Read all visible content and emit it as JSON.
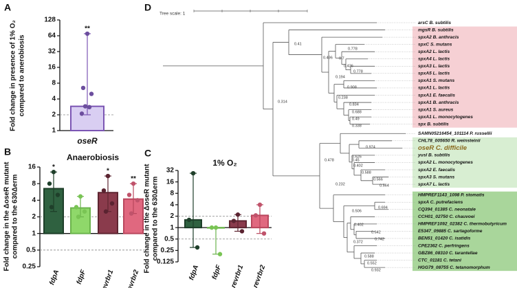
{
  "chart_data": [
    {
      "type": "bar",
      "panel": "A",
      "log_base": 2,
      "ylabel": [
        "Fold change in presence of  1% O₂",
        "compared to anerobiosis"
      ],
      "categories": [
        "oseR"
      ],
      "values": [
        2.9
      ],
      "colors": [
        "#d9cef2"
      ],
      "edge_colors": [
        "#7b55b3"
      ],
      "point_colors": [
        "#6c4e9e"
      ],
      "error_low": [
        2
      ],
      "error_high": [
        70
      ],
      "points": [
        [
          70,
          6.5,
          5,
          2.9,
          2.8,
          2.1
        ]
      ],
      "significance": [
        "**"
      ],
      "ylim": [
        1,
        128
      ],
      "yticks": [
        1,
        2,
        4,
        8,
        16,
        32,
        64,
        128
      ],
      "ref_lines": [
        2
      ]
    },
    {
      "type": "bar",
      "panel": "B",
      "title": "Anaerobiosis",
      "log_base": 2,
      "ylabel": [
        "Fold change in the ΔoseR mutant",
        "compared to the 630Δerm"
      ],
      "categories": [
        "fdpA",
        "fdpF",
        "revrbr1",
        "revrbr2"
      ],
      "values": [
        6.5,
        2.9,
        5.5,
        4.2
      ],
      "colors": [
        "#2f6140",
        "#8fd86a",
        "#8a3b4c",
        "#e0687f"
      ],
      "edge_colors": [
        "#1d3d28",
        "#6bb34c",
        "#5e2531",
        "#b9475d"
      ],
      "point_colors": [
        "#1f3f2a",
        "#79c454",
        "#5a2330",
        "#c0536b"
      ],
      "error_low": [
        2.5,
        2,
        2.5,
        2.3
      ],
      "error_high": [
        13,
        4.7,
        11,
        8
      ],
      "points": [
        [
          13,
          8,
          5,
          3
        ],
        [
          4.7,
          3,
          2.5,
          2
        ],
        [
          11,
          6,
          3.5,
          2.5
        ],
        [
          8,
          5,
          4,
          2.3
        ]
      ],
      "significance": [
        "*",
        null,
        "*",
        "**"
      ],
      "ylim": [
        0.25,
        16
      ],
      "yticks": [
        0.25,
        0.5,
        1,
        2,
        4,
        8,
        16
      ],
      "ref_lines": [
        2,
        0.5
      ]
    },
    {
      "type": "bar",
      "panel": "C",
      "title": "1% O₂",
      "log_base": 2,
      "ylabel": [
        "Fold change in the ΔoseR mutant",
        "compared to the 630Δerm"
      ],
      "categories": [
        "fdpA",
        "fdpF",
        "revrbr1",
        "revrbr2"
      ],
      "values": [
        1.6,
        1.0,
        1.5,
        2.1
      ],
      "colors": [
        "#2f6140",
        "#8fd86a",
        "#8a3b4c",
        "#e0687f"
      ],
      "edge_colors": [
        "#1d3d28",
        "#6bb34c",
        "#5e2531",
        "#b9475d"
      ],
      "point_colors": [
        "#1f3f2a",
        "#79c454",
        "#5a2330",
        "#c0536b"
      ],
      "error_low": [
        0.3,
        0.2,
        0.8,
        0.7
      ],
      "error_high": [
        27,
        1,
        2.2,
        4
      ],
      "points": [
        [
          27,
          1.6,
          0.3
        ],
        [
          1,
          1,
          0.2
        ],
        [
          2.2,
          1.5,
          0.8
        ],
        [
          4,
          2.1,
          0.7
        ]
      ],
      "significance": [
        null,
        null,
        null,
        null
      ],
      "ylim": [
        0.125,
        32
      ],
      "yticks": [
        0.125,
        0.25,
        0.5,
        1,
        2,
        4,
        8,
        16,
        32
      ],
      "ref_lines": [
        2,
        0.5
      ]
    }
  ],
  "tree": {
    "panel": "D",
    "scale_label": "Tree scale: 1",
    "leaves": [
      "arsC B. subtilis",
      "mgsR B. subtilis",
      "spxA2 B. anthracis",
      "spxC S. mutans",
      "spxA2 L. lactis",
      "spxA4 L. lactis",
      "spxA3 L. lactis",
      "spxA5 L. lactis",
      "spxA1 S. mutans",
      "spxA1 L. lactis",
      "spxA1 E. faecalis",
      "spxA1 B. anthracis",
      "spxA1 S. aureus",
      "spxA1 L. monocytogenes",
      "spx B. subtilis",
      "SAMN05216454_101114 P. russellii",
      "CHL78_005650 R. weinsteinii",
      "oseR C. difficile",
      "yusI B. subtilis",
      "spxA2 L. monocytogenes",
      "spxA2 E. faecalis",
      "spxA3 S. mutans",
      "spxA7 L. lactis",
      "HMPREF1143_1098 P. stomatis",
      "spxA C. putrefaciens",
      "CQ394_01385 C. neonatale",
      "CCH01_02750 C. chauvoei",
      "HMPREF1092_02382 C. thermobutyricum",
      "E5347_09885 C. sartagoforme",
      "BEN51_01420 C. isatidis",
      "CPE2362 C. perfringens",
      "GBZ86_08310 C. tarantellae",
      "CTC_01181 C. tetani",
      "HGG79_08755 C. tetanomorphum"
    ],
    "bootstrap": [
      "0.41",
      "0.496",
      "0.778",
      "0.7",
      "0.436",
      "0.778",
      "0.194",
      "0.908",
      "0.238",
      "0.834",
      "0.688",
      "0.49",
      "0.338",
      "0.314",
      "0.478",
      "0.45",
      "0.974",
      "0.626",
      "0.402",
      "0.588",
      "0.566",
      "0.564",
      "0.232",
      "0.694",
      "0.506",
      "0.402",
      "0.642",
      "0.372",
      "0.742",
      "0.588",
      "0.552",
      "0.932"
    ]
  }
}
